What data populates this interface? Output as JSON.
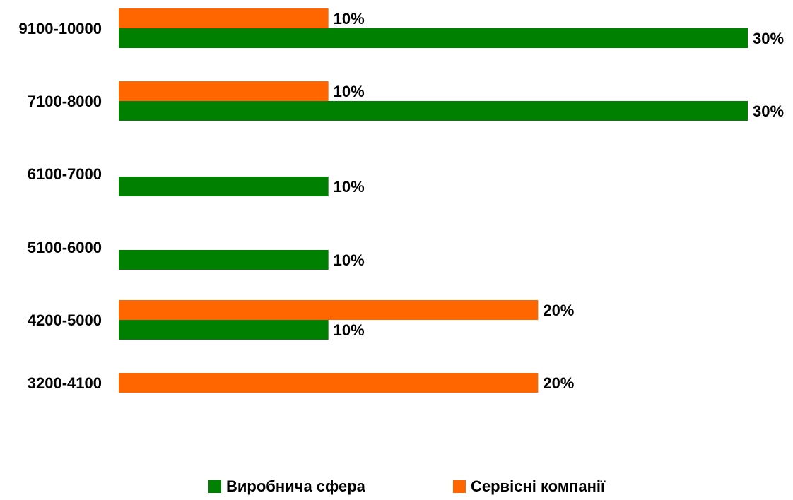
{
  "chart_data": {
    "type": "bar",
    "orientation": "horizontal",
    "title": "",
    "xlabel": "",
    "ylabel": "",
    "grid": false,
    "legend_position": "bottom",
    "value_format": "percent",
    "categories": [
      "9100-10000",
      "7100-8000",
      "6100-7000",
      "5100-6000",
      "4200-5000",
      "3200-4100"
    ],
    "series": [
      {
        "name": "Виробнича сфера",
        "color": "#008000",
        "values": [
          30,
          30,
          10,
          10,
          10,
          null
        ],
        "labels": [
          "30%",
          "30%",
          "10%",
          "10%",
          "10%",
          ""
        ]
      },
      {
        "name": "Сервісні компанії",
        "color": "#ff6600",
        "values": [
          10,
          10,
          null,
          null,
          20,
          20
        ],
        "labels": [
          "10%",
          "10%",
          "",
          "",
          "20%",
          "20%"
        ]
      }
    ],
    "xlim": [
      0,
      30
    ]
  }
}
